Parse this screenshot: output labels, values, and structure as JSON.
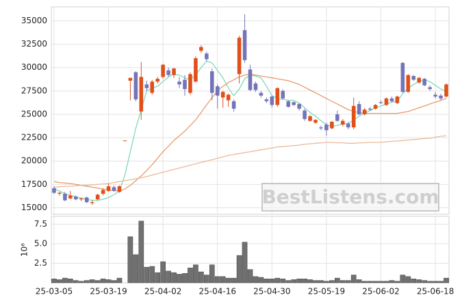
{
  "chart_data": [
    {
      "type": "candlestick",
      "open": [
        17100,
        16500,
        16500,
        16000,
        16200,
        15900,
        16100,
        15500,
        15900,
        16500,
        16800,
        17200,
        16700,
        22200,
        28600,
        29500,
        25300,
        28200,
        27300,
        28500,
        29000,
        29700,
        29200,
        28500,
        28700,
        27300,
        28500,
        31800,
        31500,
        29600,
        28000,
        26800,
        26500,
        26400,
        29300,
        34000,
        29800,
        28300,
        27300,
        26600,
        26900,
        26000,
        27500,
        26400,
        26300,
        26100,
        25400,
        24300,
        24100,
        23600,
        23900,
        23500,
        25000,
        23900,
        24000,
        23600,
        26100,
        25000,
        25600,
        25600,
        26300,
        26000,
        26700,
        26200,
        30500,
        27400,
        29100,
        28400,
        28800,
        27900,
        27100,
        27000,
        26900
      ],
      "high": [
        17300,
        16700,
        16700,
        16800,
        16300,
        16100,
        16200,
        15800,
        16500,
        17100,
        17600,
        17400,
        17400,
        22200,
        28900,
        29600,
        30600,
        28600,
        28700,
        29000,
        30400,
        30000,
        30000,
        29000,
        29200,
        29500,
        31200,
        32400,
        31700,
        29900,
        28200,
        27500,
        27200,
        26600,
        33400,
        35700,
        30300,
        28500,
        27500,
        26800,
        27000,
        27900,
        27700,
        26500,
        26400,
        26200,
        25600,
        24900,
        24500,
        23800,
        24100,
        24300,
        25400,
        24500,
        24200,
        26800,
        26400,
        25700,
        25800,
        26100,
        26500,
        26800,
        26900,
        27000,
        30600,
        29300,
        29200,
        29000,
        28900,
        28100,
        27400,
        27200,
        28300
      ],
      "low": [
        16500,
        16300,
        15700,
        15900,
        15800,
        15700,
        15500,
        15300,
        15800,
        16300,
        16700,
        16700,
        16600,
        22200,
        26500,
        26400,
        24400,
        27500,
        27100,
        28300,
        28800,
        29000,
        28900,
        27800,
        27000,
        27100,
        28400,
        31600,
        30700,
        26500,
        25600,
        25700,
        25800,
        25300,
        28300,
        30500,
        27500,
        27400,
        26800,
        26200,
        25700,
        25800,
        26600,
        25700,
        25900,
        25400,
        24300,
        24200,
        24000,
        23300,
        22700,
        23400,
        24200,
        23700,
        23400,
        23400,
        24900,
        24900,
        25400,
        25500,
        26100,
        25900,
        26300,
        26100,
        27300,
        27300,
        28600,
        28300,
        28000,
        27500,
        26700,
        26500,
        26800
      ],
      "close": [
        16600,
        16600,
        15800,
        16300,
        15900,
        16000,
        15600,
        15600,
        16400,
        16900,
        17300,
        16800,
        17300,
        22200,
        28900,
        26600,
        29000,
        27800,
        28500,
        28800,
        30300,
        29200,
        29900,
        28200,
        27700,
        29300,
        31000,
        32200,
        30900,
        27300,
        27000,
        27400,
        27100,
        25600,
        33200,
        30800,
        27600,
        27600,
        27000,
        26400,
        26000,
        27800,
        26700,
        25800,
        26000,
        25600,
        24500,
        24800,
        24400,
        23500,
        23300,
        24200,
        24300,
        24300,
        23600,
        25900,
        25000,
        25500,
        25500,
        26000,
        26200,
        26700,
        26400,
        26900,
        27400,
        29200,
        28700,
        28900,
        28100,
        27700,
        26900,
        26700,
        28200
      ],
      "up_color": "#e0501a",
      "down_color": "#7474b8",
      "series": [
        {
          "color": "#7fd8b8",
          "values": [
            17000,
            16800,
            16500,
            16300,
            16200,
            16000,
            15900,
            15800,
            15800,
            15900,
            16100,
            16400,
            16800,
            18500,
            21000,
            23500,
            25500,
            27500,
            27800,
            28000,
            28500,
            29000,
            29300,
            29200,
            28900,
            28700,
            29200,
            30000,
            30700,
            30500,
            29700,
            28900,
            27800,
            27000,
            27700,
            28800,
            29200,
            29100,
            28900,
            28000,
            27000,
            26700,
            26600,
            26500,
            26500,
            26200,
            25700,
            25200,
            24800,
            24300,
            23900,
            23700,
            23800,
            24000,
            24000,
            24400,
            24800,
            25100,
            25400,
            25700,
            25900,
            26100,
            26300,
            26400,
            27200,
            27800,
            28200,
            28500,
            28700,
            28500,
            28100,
            27700,
            27500
          ]
        },
        {
          "color": "#e89a6c",
          "values": [
            17800,
            17700,
            17650,
            17600,
            17500,
            17400,
            17300,
            17200,
            17100,
            17000,
            16900,
            16850,
            16800,
            17000,
            17400,
            17900,
            18400,
            19000,
            19600,
            20300,
            21000,
            21600,
            22200,
            22700,
            23200,
            23800,
            24400,
            25200,
            26000,
            26800,
            27500,
            28000,
            28400,
            28700,
            29000,
            29200,
            29300,
            29200,
            29100,
            29000,
            28900,
            28800,
            28700,
            28600,
            28400,
            28200,
            27900,
            27600,
            27300,
            27000,
            26700,
            26400,
            26100,
            25800,
            25500,
            25300,
            25200,
            25100,
            25100,
            25100,
            25100,
            25100,
            25100,
            25100,
            25200,
            25300,
            25500,
            25700,
            25900,
            26100,
            26300,
            26500,
            26700
          ]
        },
        {
          "color": "#ecb898",
          "values": [
            17200,
            17250,
            17300,
            17300,
            17350,
            17400,
            17400,
            17450,
            17500,
            17550,
            17600,
            17700,
            17800,
            17900,
            18000,
            18100,
            18200,
            18350,
            18500,
            18650,
            18800,
            18950,
            19100,
            19250,
            19400,
            19550,
            19700,
            19850,
            20000,
            20150,
            20300,
            20450,
            20600,
            20700,
            20800,
            20900,
            21000,
            21100,
            21200,
            21300,
            21400,
            21500,
            21550,
            21600,
            21650,
            21700,
            21800,
            21850,
            21900,
            21950,
            22000,
            22000,
            21950,
            21950,
            21900,
            21900,
            21950,
            21950,
            22000,
            22000,
            22000,
            22050,
            22100,
            22150,
            22200,
            22250,
            22300,
            22350,
            22400,
            22450,
            22550,
            22650,
            22700
          ]
        }
      ],
      "ylim": [
        14300,
        36500
      ],
      "yticks": [
        15000,
        17500,
        20000,
        22500,
        25000,
        27500,
        30000,
        32500,
        35000
      ],
      "grid": true,
      "watermark": "BestListens.com"
    },
    {
      "type": "bar",
      "categories": [
        "25-03-05",
        null,
        null,
        null,
        null,
        null,
        null,
        null,
        null,
        null,
        "25-03-19",
        null,
        null,
        null,
        null,
        null,
        null,
        null,
        null,
        null,
        "25-04-02",
        null,
        null,
        null,
        null,
        null,
        null,
        null,
        null,
        null,
        "25-04-16",
        null,
        null,
        null,
        null,
        null,
        null,
        null,
        null,
        null,
        "25-04-30",
        null,
        null,
        null,
        null,
        null,
        null,
        null,
        null,
        null,
        "25-05-19",
        null,
        null,
        null,
        null,
        null,
        null,
        null,
        null,
        null,
        "25-06-02",
        null,
        null,
        null,
        null,
        null,
        null,
        null,
        null,
        null,
        "25-06-18",
        null,
        null
      ],
      "values": [
        0.5,
        0.4,
        0.6,
        0.5,
        0.3,
        0.2,
        0.3,
        0.4,
        0.3,
        0.5,
        0.4,
        0.3,
        0.6,
        0,
        5.9,
        3.6,
        7.9,
        2.0,
        2.1,
        1.3,
        2.7,
        1.5,
        1.3,
        1.1,
        1.2,
        1.9,
        2.3,
        1.4,
        1.0,
        2.3,
        0.8,
        0.8,
        0.6,
        0.6,
        3.5,
        5.2,
        1.7,
        0.8,
        0.7,
        0.5,
        0.5,
        0.6,
        0.5,
        0.3,
        0.4,
        0.5,
        0.5,
        0.4,
        0.3,
        0.3,
        0.2,
        0.3,
        0.6,
        0.3,
        0.3,
        1.0,
        0.4,
        0.2,
        0.2,
        0.2,
        0.2,
        0.2,
        0.3,
        0.2,
        1.0,
        0.8,
        0.5,
        0.4,
        0.3,
        0.2,
        0.2,
        0.2,
        0.6
      ],
      "color": "#707070",
      "ylim": [
        0,
        8.5
      ],
      "yticks": [
        2.5,
        {
          "value": 5,
          "label": "5.0"
        },
        7.5
      ],
      "offset_label": "10⁶",
      "grid": true
    }
  ]
}
